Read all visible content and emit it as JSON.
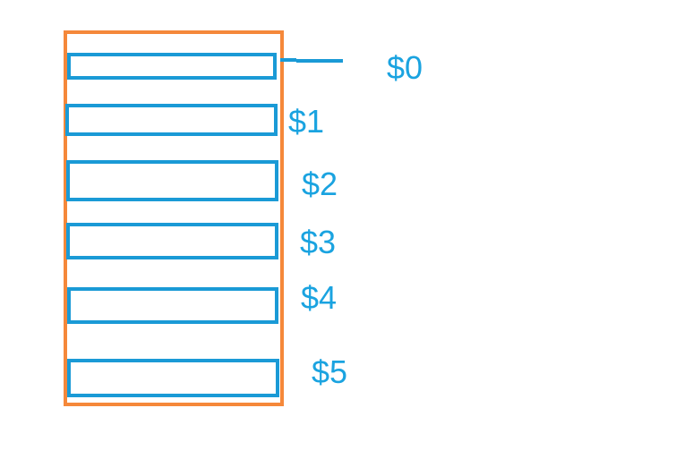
{
  "colors": {
    "frame": "#f5883a",
    "slot": "#1a9ad6",
    "label": "#1aa3e0"
  },
  "slots": [
    {
      "label": "$0"
    },
    {
      "label": "$1"
    },
    {
      "label": "$2"
    },
    {
      "label": "$3"
    },
    {
      "label": "$4"
    },
    {
      "label": "$5"
    }
  ]
}
